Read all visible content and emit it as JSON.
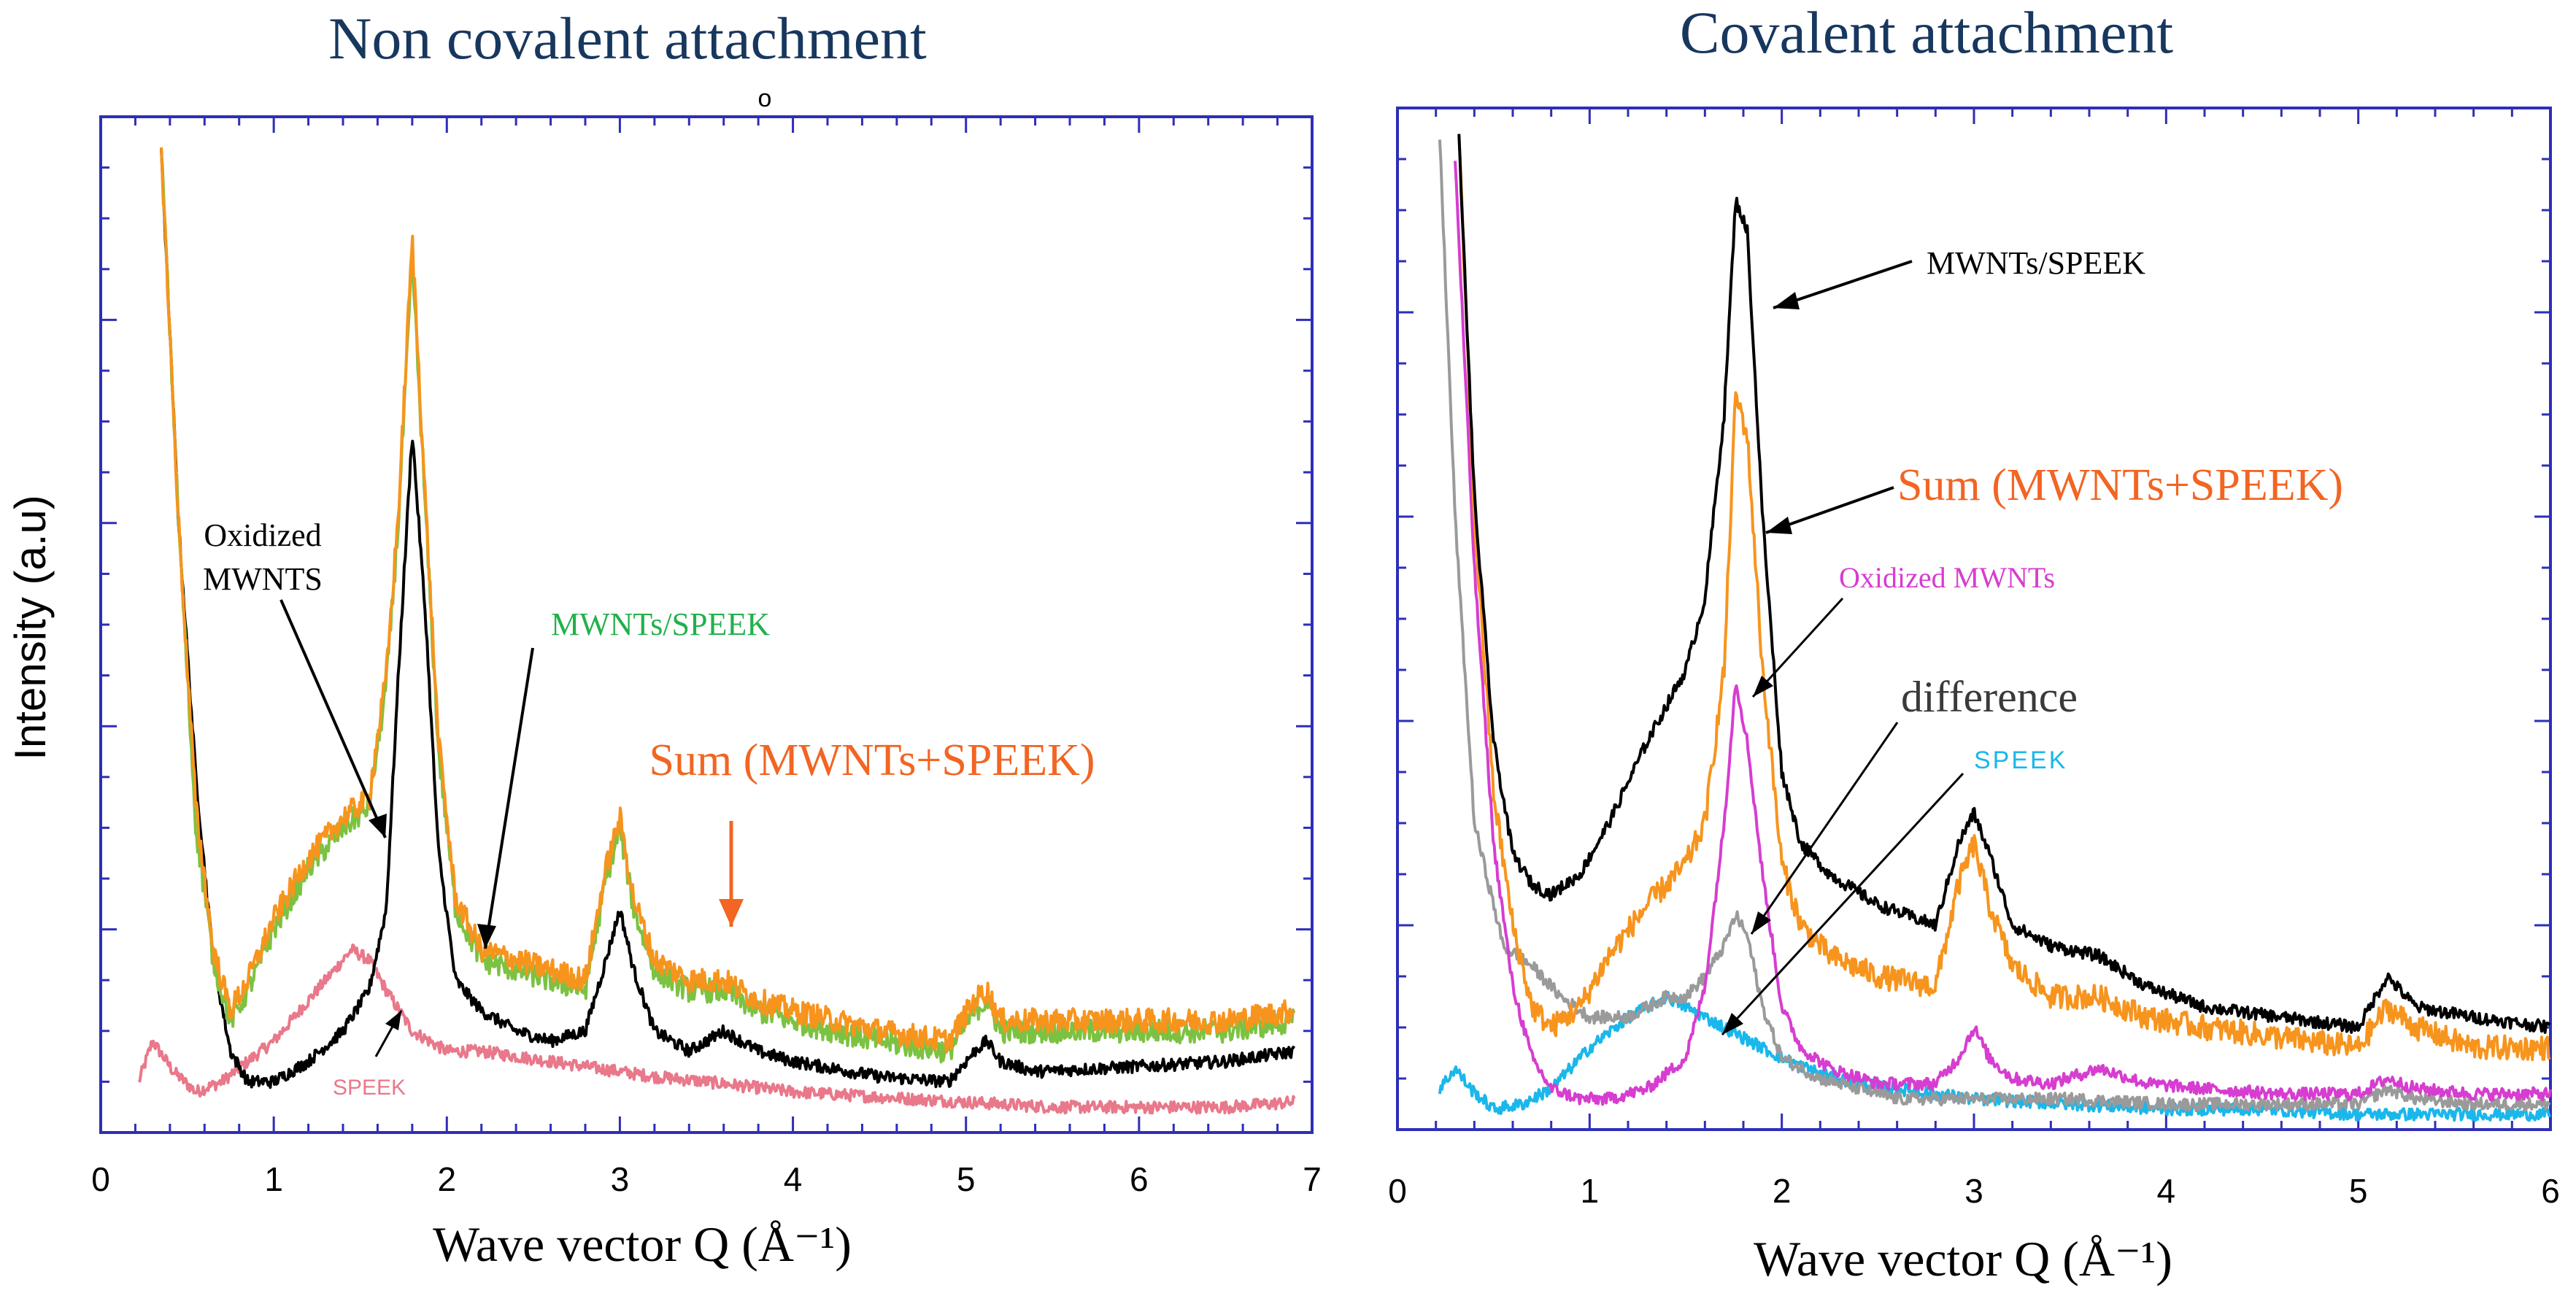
{
  "chart_data": [
    {
      "type": "line",
      "title": "Non covalent attachment",
      "xlabel": "Wave vector Q (Å⁻¹)",
      "ylabel": "Intensity (a.u)",
      "xlim": [
        0,
        7
      ],
      "ylim": [
        0,
        1
      ],
      "xticks": [
        "0",
        "1",
        "2",
        "3",
        "4",
        "5",
        "6",
        "7"
      ],
      "grid": false,
      "series": [
        {
          "name": "SPEEK",
          "color": "#e8788a",
          "x": [
            0.22,
            0.3,
            0.42,
            0.55,
            0.7,
            0.85,
            1.0,
            1.15,
            1.3,
            1.45,
            1.55,
            1.65,
            1.8,
            2.0,
            2.2,
            2.4,
            2.6,
            2.8,
            3.0,
            3.2,
            3.5,
            4.0,
            4.5,
            5.0,
            5.5,
            6.0,
            6.5,
            6.9
          ],
          "y": [
            0.05,
            0.09,
            0.06,
            0.04,
            0.05,
            0.07,
            0.09,
            0.12,
            0.15,
            0.18,
            0.17,
            0.14,
            0.1,
            0.08,
            0.08,
            0.075,
            0.07,
            0.065,
            0.06,
            0.055,
            0.05,
            0.04,
            0.035,
            0.03,
            0.025,
            0.025,
            0.025,
            0.03
          ]
        },
        {
          "name": "Oxidized MWNTS",
          "color": "#000000",
          "x": [
            0.35,
            0.45,
            0.55,
            0.65,
            0.75,
            0.85,
            1.0,
            1.2,
            1.4,
            1.55,
            1.65,
            1.72,
            1.8,
            1.88,
            1.95,
            2.05,
            2.2,
            2.4,
            2.6,
            2.8,
            2.92,
            3.0,
            3.08,
            3.2,
            3.4,
            3.6,
            3.8,
            4.0,
            4.5,
            4.9,
            5.05,
            5.12,
            5.2,
            5.4,
            6.0,
            6.5,
            6.9
          ],
          "y": [
            0.97,
            0.6,
            0.35,
            0.17,
            0.08,
            0.05,
            0.05,
            0.07,
            0.1,
            0.14,
            0.22,
            0.45,
            0.69,
            0.5,
            0.28,
            0.15,
            0.12,
            0.1,
            0.09,
            0.1,
            0.17,
            0.22,
            0.16,
            0.1,
            0.08,
            0.1,
            0.08,
            0.07,
            0.055,
            0.05,
            0.08,
            0.09,
            0.07,
            0.06,
            0.065,
            0.07,
            0.08
          ]
        },
        {
          "name": "MWNTs/SPEEK",
          "color": "#7cc242",
          "x": [
            0.35,
            0.45,
            0.55,
            0.65,
            0.75,
            0.85,
            1.0,
            1.2,
            1.4,
            1.55,
            1.65,
            1.72,
            1.8,
            1.88,
            1.95,
            2.05,
            2.2,
            2.4,
            2.6,
            2.8,
            2.92,
            3.0,
            3.08,
            3.2,
            3.4,
            3.6,
            3.8,
            4.0,
            4.5,
            4.9,
            5.05,
            5.12,
            5.2,
            5.4,
            6.0,
            6.5,
            6.9
          ],
          "y": [
            0.97,
            0.6,
            0.3,
            0.17,
            0.11,
            0.14,
            0.2,
            0.26,
            0.3,
            0.32,
            0.44,
            0.6,
            0.86,
            0.6,
            0.38,
            0.22,
            0.17,
            0.16,
            0.15,
            0.14,
            0.25,
            0.3,
            0.22,
            0.16,
            0.14,
            0.14,
            0.12,
            0.11,
            0.09,
            0.08,
            0.12,
            0.13,
            0.1,
            0.1,
            0.1,
            0.1,
            0.11
          ]
        },
        {
          "name": "Sum (MWNTs+SPEEK)",
          "color": "#f7941d",
          "x": [
            0.35,
            0.45,
            0.55,
            0.65,
            0.75,
            0.85,
            1.0,
            1.2,
            1.4,
            1.55,
            1.65,
            1.72,
            1.8,
            1.88,
            1.95,
            2.05,
            2.2,
            2.4,
            2.6,
            2.8,
            2.92,
            3.0,
            3.08,
            3.2,
            3.4,
            3.6,
            3.8,
            4.0,
            4.5,
            4.9,
            5.05,
            5.12,
            5.2,
            5.4,
            6.0,
            6.5,
            6.9
          ],
          "y": [
            0.97,
            0.6,
            0.32,
            0.18,
            0.12,
            0.15,
            0.21,
            0.27,
            0.31,
            0.33,
            0.45,
            0.61,
            0.88,
            0.61,
            0.39,
            0.23,
            0.18,
            0.17,
            0.16,
            0.15,
            0.26,
            0.31,
            0.23,
            0.17,
            0.15,
            0.15,
            0.13,
            0.12,
            0.1,
            0.09,
            0.13,
            0.14,
            0.11,
            0.11,
            0.11,
            0.11,
            0.12
          ]
        }
      ],
      "annotations": [
        {
          "text_lines": [
            "Oxidized",
            "MWNTS"
          ],
          "color": "#000000"
        },
        {
          "text": "MWNTs/SPEEK",
          "color": "#22b04b"
        },
        {
          "text": "Sum (MWNTs+SPEEK)",
          "color": "#f26522"
        },
        {
          "text": "SPEEK",
          "color": "#e8788a"
        }
      ],
      "extra_mark": "o"
    },
    {
      "type": "line",
      "title": "Covalent attachment",
      "xlabel": "Wave vector Q (Å⁻¹)",
      "xlim": [
        0,
        6
      ],
      "ylim": [
        0,
        1
      ],
      "xticks": [
        "0",
        "1",
        "2",
        "3",
        "4",
        "5",
        "6"
      ],
      "grid": false,
      "series": [
        {
          "name": "SPEEK",
          "color": "#1ab7ea",
          "x": [
            0.22,
            0.3,
            0.38,
            0.5,
            0.65,
            0.8,
            1.0,
            1.2,
            1.4,
            1.5,
            1.6,
            1.7,
            1.8,
            2.0,
            2.2,
            2.4,
            2.6,
            3.0,
            3.5,
            4.0,
            4.5,
            5.0,
            5.5,
            6.0
          ],
          "y": [
            0.04,
            0.06,
            0.04,
            0.02,
            0.025,
            0.04,
            0.08,
            0.11,
            0.13,
            0.12,
            0.11,
            0.1,
            0.09,
            0.07,
            0.055,
            0.045,
            0.04,
            0.03,
            0.025,
            0.02,
            0.02,
            0.015,
            0.015,
            0.015
          ]
        },
        {
          "name": "difference",
          "color": "#9a9a9a",
          "x": [
            0.22,
            0.3,
            0.4,
            0.55,
            0.7,
            0.85,
            1.0,
            1.2,
            1.4,
            1.5,
            1.6,
            1.7,
            1.76,
            1.82,
            1.9,
            2.0,
            2.2,
            2.4,
            2.6,
            2.8,
            3.0,
            3.5,
            4.0,
            4.5,
            5.0,
            5.15,
            5.3,
            5.6,
            6.0
          ],
          "y": [
            0.97,
            0.6,
            0.3,
            0.18,
            0.16,
            0.13,
            0.11,
            0.11,
            0.13,
            0.13,
            0.15,
            0.18,
            0.21,
            0.19,
            0.12,
            0.07,
            0.05,
            0.04,
            0.03,
            0.03,
            0.03,
            0.03,
            0.025,
            0.025,
            0.025,
            0.04,
            0.03,
            0.025,
            0.025
          ]
        },
        {
          "name": "Oxidized MWNTs",
          "color": "#d63dd0",
          "x": [
            0.3,
            0.4,
            0.5,
            0.6,
            0.7,
            0.8,
            0.95,
            1.1,
            1.3,
            1.5,
            1.6,
            1.7,
            1.76,
            1.82,
            1.9,
            2.0,
            2.1,
            2.25,
            2.5,
            2.8,
            2.92,
            3.0,
            3.08,
            3.2,
            3.4,
            3.65,
            3.9,
            4.2,
            4.6,
            5.0,
            5.15,
            5.3,
            5.6,
            6.0
          ],
          "y": [
            0.95,
            0.55,
            0.28,
            0.14,
            0.07,
            0.04,
            0.03,
            0.03,
            0.04,
            0.07,
            0.14,
            0.3,
            0.44,
            0.38,
            0.25,
            0.12,
            0.08,
            0.06,
            0.045,
            0.045,
            0.07,
            0.1,
            0.07,
            0.05,
            0.045,
            0.06,
            0.045,
            0.04,
            0.035,
            0.035,
            0.05,
            0.04,
            0.035,
            0.035
          ]
        },
        {
          "name": "Sum (MWNTs+SPEEK)",
          "color": "#f7941d",
          "x": [
            0.32,
            0.4,
            0.5,
            0.6,
            0.7,
            0.8,
            0.95,
            1.1,
            1.3,
            1.5,
            1.6,
            1.7,
            1.76,
            1.82,
            1.9,
            2.0,
            2.1,
            2.25,
            2.5,
            2.8,
            2.92,
            3.0,
            3.08,
            3.2,
            3.4,
            3.65,
            3.9,
            4.2,
            4.6,
            5.0,
            5.15,
            5.3,
            5.6,
            6.0
          ],
          "y": [
            0.97,
            0.6,
            0.33,
            0.2,
            0.12,
            0.1,
            0.12,
            0.17,
            0.22,
            0.26,
            0.3,
            0.45,
            0.72,
            0.68,
            0.45,
            0.26,
            0.2,
            0.17,
            0.15,
            0.14,
            0.24,
            0.28,
            0.22,
            0.16,
            0.13,
            0.13,
            0.11,
            0.1,
            0.09,
            0.08,
            0.12,
            0.1,
            0.08,
            0.08
          ]
        },
        {
          "name": "MWNTs/SPEEK",
          "color": "#000000",
          "x": [
            0.32,
            0.4,
            0.5,
            0.6,
            0.7,
            0.8,
            0.95,
            1.1,
            1.3,
            1.5,
            1.6,
            1.7,
            1.76,
            1.82,
            1.9,
            2.0,
            2.1,
            2.25,
            2.5,
            2.8,
            2.92,
            3.0,
            3.08,
            3.2,
            3.4,
            3.65,
            3.9,
            4.2,
            4.6,
            5.0,
            5.15,
            5.3,
            5.6,
            6.0
          ],
          "y": [
            0.97,
            0.62,
            0.38,
            0.27,
            0.24,
            0.23,
            0.25,
            0.3,
            0.38,
            0.45,
            0.52,
            0.7,
            0.91,
            0.88,
            0.6,
            0.35,
            0.28,
            0.25,
            0.22,
            0.2,
            0.28,
            0.31,
            0.27,
            0.2,
            0.18,
            0.17,
            0.14,
            0.12,
            0.11,
            0.1,
            0.15,
            0.12,
            0.11,
            0.1
          ]
        }
      ],
      "annotations": [
        {
          "text": "MWNTs/SPEEK",
          "color": "#000000"
        },
        {
          "text": "Sum (MWNTs+SPEEK)",
          "color": "#f26522"
        },
        {
          "text": "Oxidized MWNTs",
          "color": "#d63dd0"
        },
        {
          "text": "difference",
          "color": "#3a3a3a"
        },
        {
          "text": "SPEEK",
          "color": "#1ab7ea"
        }
      ]
    }
  ]
}
